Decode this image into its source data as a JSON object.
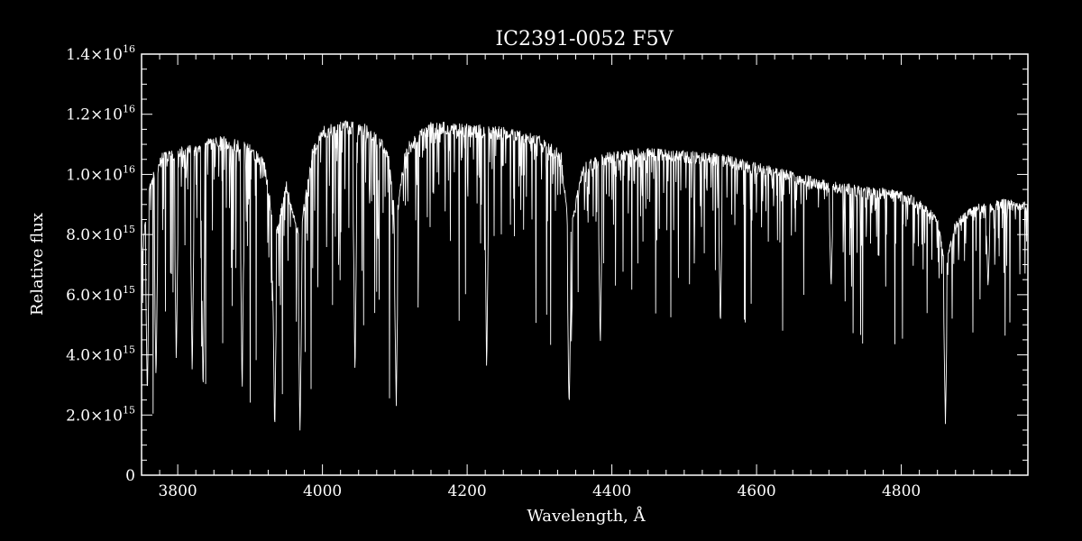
{
  "chart_data": {
    "type": "line",
    "title": "IC2391-0052  F5V",
    "xlabel": "Wavelength, Å",
    "ylabel": "Relative flux",
    "xlim": [
      3750,
      4975
    ],
    "ylim": [
      0,
      1.4e+16
    ],
    "grid": false,
    "legend": "none",
    "color": "#ffffff",
    "background": "#000000",
    "x_ticks": [
      {
        "value": 3800,
        "label": "3800"
      },
      {
        "value": 4000,
        "label": "4000"
      },
      {
        "value": 4200,
        "label": "4200"
      },
      {
        "value": 4400,
        "label": "4400"
      },
      {
        "value": 4600,
        "label": "4600"
      },
      {
        "value": 4800,
        "label": "4800"
      }
    ],
    "y_ticks": [
      {
        "value": 0,
        "mantissa": "0",
        "exponent": ""
      },
      {
        "value": 2000000000000000.0,
        "mantissa": "2.0×10",
        "exponent": "15"
      },
      {
        "value": 4000000000000000.0,
        "mantissa": "4.0×10",
        "exponent": "15"
      },
      {
        "value": 6000000000000000.0,
        "mantissa": "6.0×10",
        "exponent": "15"
      },
      {
        "value": 8000000000000000.0,
        "mantissa": "8.0×10",
        "exponent": "15"
      },
      {
        "value": 1e+16,
        "mantissa": "1.0×10",
        "exponent": "16"
      },
      {
        "value": 1.2e+16,
        "mantissa": "1.2×10",
        "exponent": "16"
      },
      {
        "value": 1.4e+16,
        "mantissa": "1.4×10",
        "exponent": "16"
      }
    ],
    "series": [
      {
        "continuum_x": [
          3750,
          3760,
          3780,
          3800,
          3820,
          3840,
          3860,
          3880,
          3900,
          3920,
          3935,
          3950,
          3968,
          3985,
          4000,
          4030,
          4060,
          4090,
          4101,
          4115,
          4150,
          4200,
          4250,
          4300,
          4330,
          4341,
          4360,
          4400,
          4450,
          4500,
          4550,
          4600,
          4650,
          4700,
          4750,
          4800,
          4830,
          4850,
          4861,
          4875,
          4900,
          4940,
          4975
        ],
        "continuum_y": [
          7200000000000000.0,
          9800000000000000.0,
          1.08e+16,
          1.09e+16,
          1.1e+16,
          1.12e+16,
          1.13e+16,
          1.12e+16,
          1.1e+16,
          1.05e+16,
          8000000000000000.0,
          9800000000000000.0,
          8000000000000000.0,
          1.08e+16,
          1.16e+16,
          1.18e+16,
          1.17e+16,
          1.1e+16,
          8500000000000000.0,
          1.1e+16,
          1.18e+16,
          1.17e+16,
          1.16e+16,
          1.13e+16,
          1.08e+16,
          8000000000000000.0,
          1.04e+16,
          1.08e+16,
          1.09e+16,
          1.08e+16,
          1.07e+16,
          1.04e+16,
          1.01e+16,
          9800000000000000.0,
          9600000000000000.0,
          9500000000000000.0,
          9100000000000000.0,
          8600000000000000.0,
          7000000000000000.0,
          8500000000000000.0,
          9000000000000000.0,
          9200000000000000.0,
          9100000000000000.0
        ],
        "dips": [
          {
            "x": 3758,
            "y": 2500000000000000.0
          },
          {
            "x": 3770,
            "y": 3000000000000000.0
          },
          {
            "x": 3798,
            "y": 3600000000000000.0
          },
          {
            "x": 3820,
            "y": 3200000000000000.0
          },
          {
            "x": 3835,
            "y": 2500000000000000.0
          },
          {
            "x": 3889,
            "y": 2600000000000000.0
          },
          {
            "x": 3934,
            "y": 1300000000000000.0
          },
          {
            "x": 3969,
            "y": 1300000000000000.0
          },
          {
            "x": 4045,
            "y": 3100000000000000.0
          },
          {
            "x": 4102,
            "y": 2300000000000000.0
          },
          {
            "x": 4227,
            "y": 3300000000000000.0
          },
          {
            "x": 4341,
            "y": 2100000000000000.0
          },
          {
            "x": 4384,
            "y": 4200000000000000.0
          },
          {
            "x": 4550,
            "y": 4800000000000000.0
          },
          {
            "x": 4703,
            "y": 6200000000000000.0
          },
          {
            "x": 4861,
            "y": 1700000000000000.0
          },
          {
            "x": 4920,
            "y": 6200000000000000.0
          }
        ]
      }
    ]
  }
}
